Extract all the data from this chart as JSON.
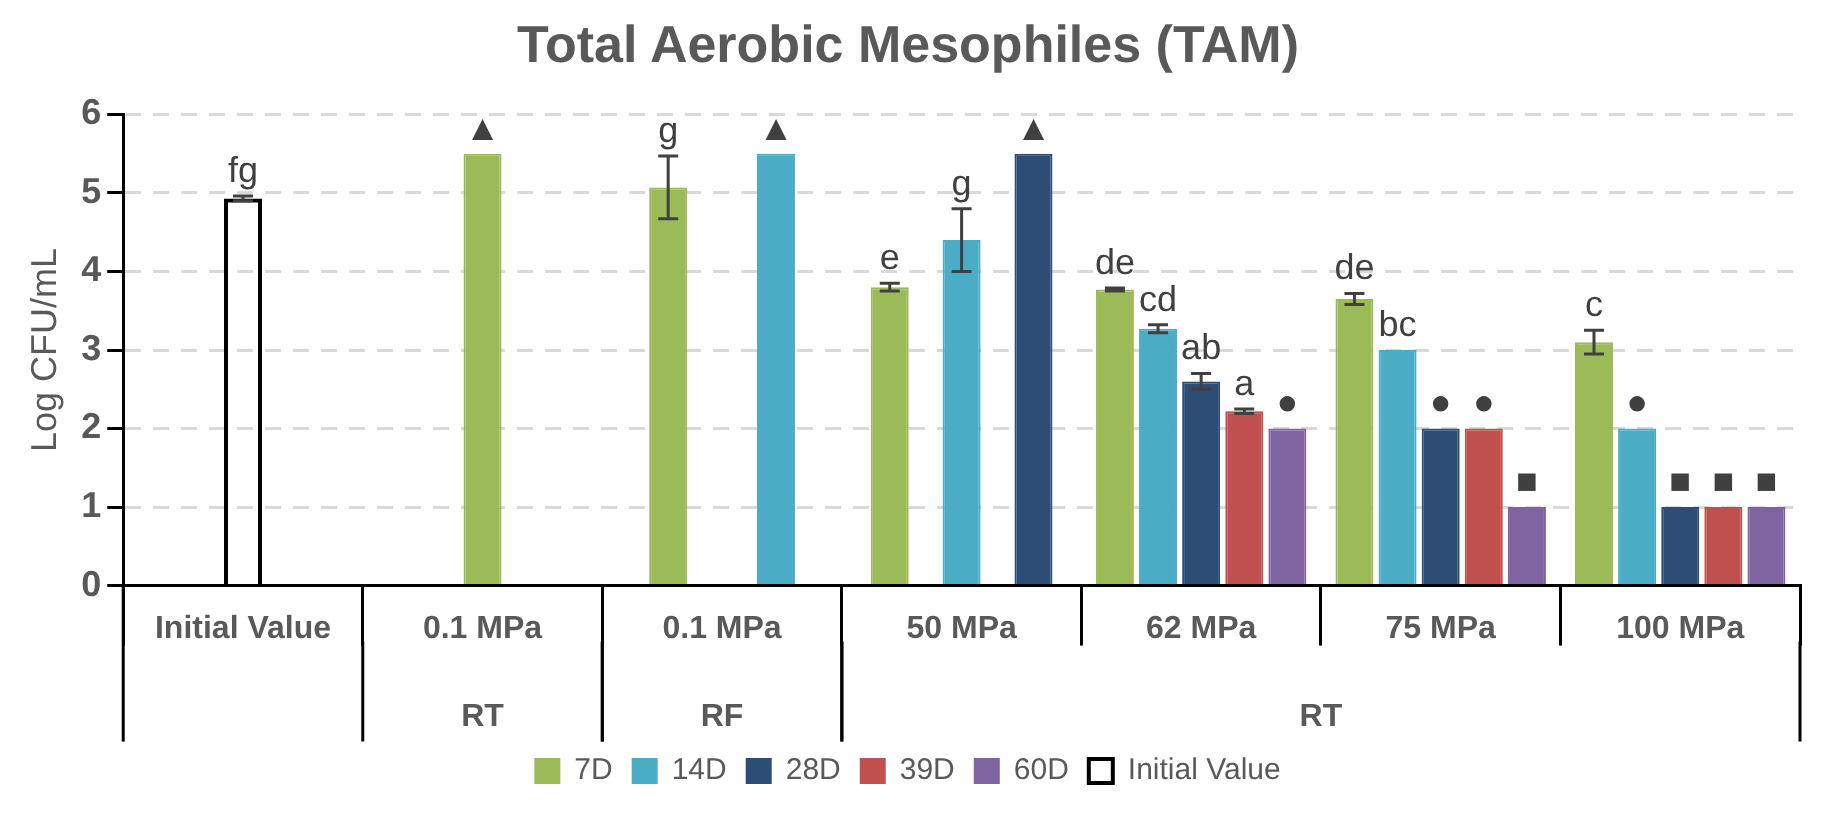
{
  "chart_data": {
    "type": "bar",
    "title": "Total Aerobic Mesophiles (TAM)",
    "ylabel": "Log CFU/mL",
    "categories": [
      "Initial Value",
      "0.1 MPa",
      "0.1 MPa",
      "50 MPa",
      "62 MPa",
      "75 MPa",
      "100 MPa"
    ],
    "annotations": [
      "RT",
      "RF",
      "RT"
    ],
    "ylim": [
      0,
      6
    ],
    "yticks": [
      0,
      1,
      2,
      3,
      4,
      5,
      6
    ],
    "grid": "y",
    "legend": "bottom",
    "series": [
      {
        "name": "7D",
        "color": "#9bbb59",
        "values": [
          null,
          5.5,
          5.07,
          3.8,
          3.77,
          3.65,
          3.1
        ],
        "errors": [
          null,
          null,
          0.4,
          0.05,
          0.02,
          0.07,
          0.15
        ],
        "value_labels": [
          null,
          "▲",
          "g",
          "e",
          "de",
          "de",
          "c"
        ]
      },
      {
        "name": "14D",
        "color": "#4bacc6",
        "values": [
          null,
          null,
          5.5,
          4.4,
          3.27,
          3.0,
          2.0
        ],
        "errors": [
          null,
          null,
          null,
          0.4,
          0.05,
          null,
          null
        ],
        "value_labels": [
          null,
          null,
          "▲",
          "g",
          "cd",
          "bc",
          "●"
        ]
      },
      {
        "name": "28D",
        "color": "#2c4d75",
        "values": [
          null,
          null,
          null,
          5.5,
          2.6,
          2.0,
          1.0
        ],
        "errors": [
          null,
          null,
          null,
          null,
          0.1,
          null,
          null
        ],
        "value_labels": [
          null,
          null,
          null,
          "▲",
          "ab",
          "●",
          "■"
        ]
      },
      {
        "name": "39D",
        "color": "#c0504d",
        "values": [
          null,
          null,
          null,
          null,
          2.22,
          2.0,
          1.0
        ],
        "errors": [
          null,
          null,
          null,
          null,
          0.03,
          null,
          null
        ],
        "value_labels": [
          null,
          null,
          null,
          null,
          "a",
          "●",
          "■"
        ]
      },
      {
        "name": "60D",
        "color": "#8064a2",
        "values": [
          null,
          null,
          null,
          null,
          2.0,
          1.0,
          1.0
        ],
        "value_labels": [
          null,
          null,
          null,
          null,
          "●",
          "■",
          "■"
        ]
      },
      {
        "name": "Initial Value",
        "color": "#000000",
        "values": [
          4.93,
          null,
          null,
          null,
          null,
          null,
          null
        ],
        "errors": [
          0.03,
          null,
          null,
          null,
          null,
          null,
          null
        ],
        "value_labels": [
          "fg",
          null,
          null,
          null,
          null,
          null,
          null
        ]
      }
    ]
  }
}
